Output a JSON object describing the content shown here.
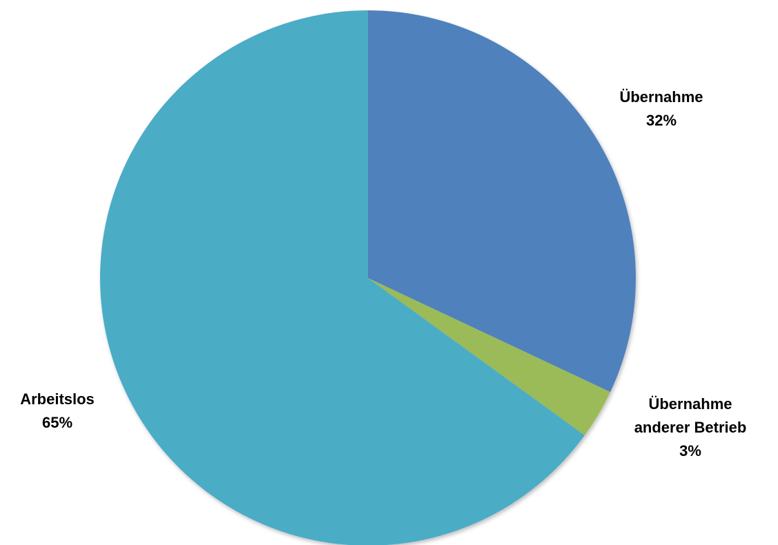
{
  "chart_data": {
    "type": "pie",
    "title": "",
    "start_angle_deg": 0,
    "direction": "clockwise",
    "slices": [
      {
        "label": "Übernahme",
        "label_lines": [
          "Übernahme",
          "32%"
        ],
        "value": 32,
        "color": "#4F81BD"
      },
      {
        "label": "Übernahme anderer Betrieb",
        "label_lines": [
          "Übernahme",
          "anderer Betrieb",
          "3%"
        ],
        "value": 3,
        "color": "#9BBB59"
      },
      {
        "label": "Arbeitslos",
        "label_lines": [
          "Arbeitslos",
          "65%"
        ],
        "value": 65,
        "color": "#4BACC6"
      }
    ]
  }
}
